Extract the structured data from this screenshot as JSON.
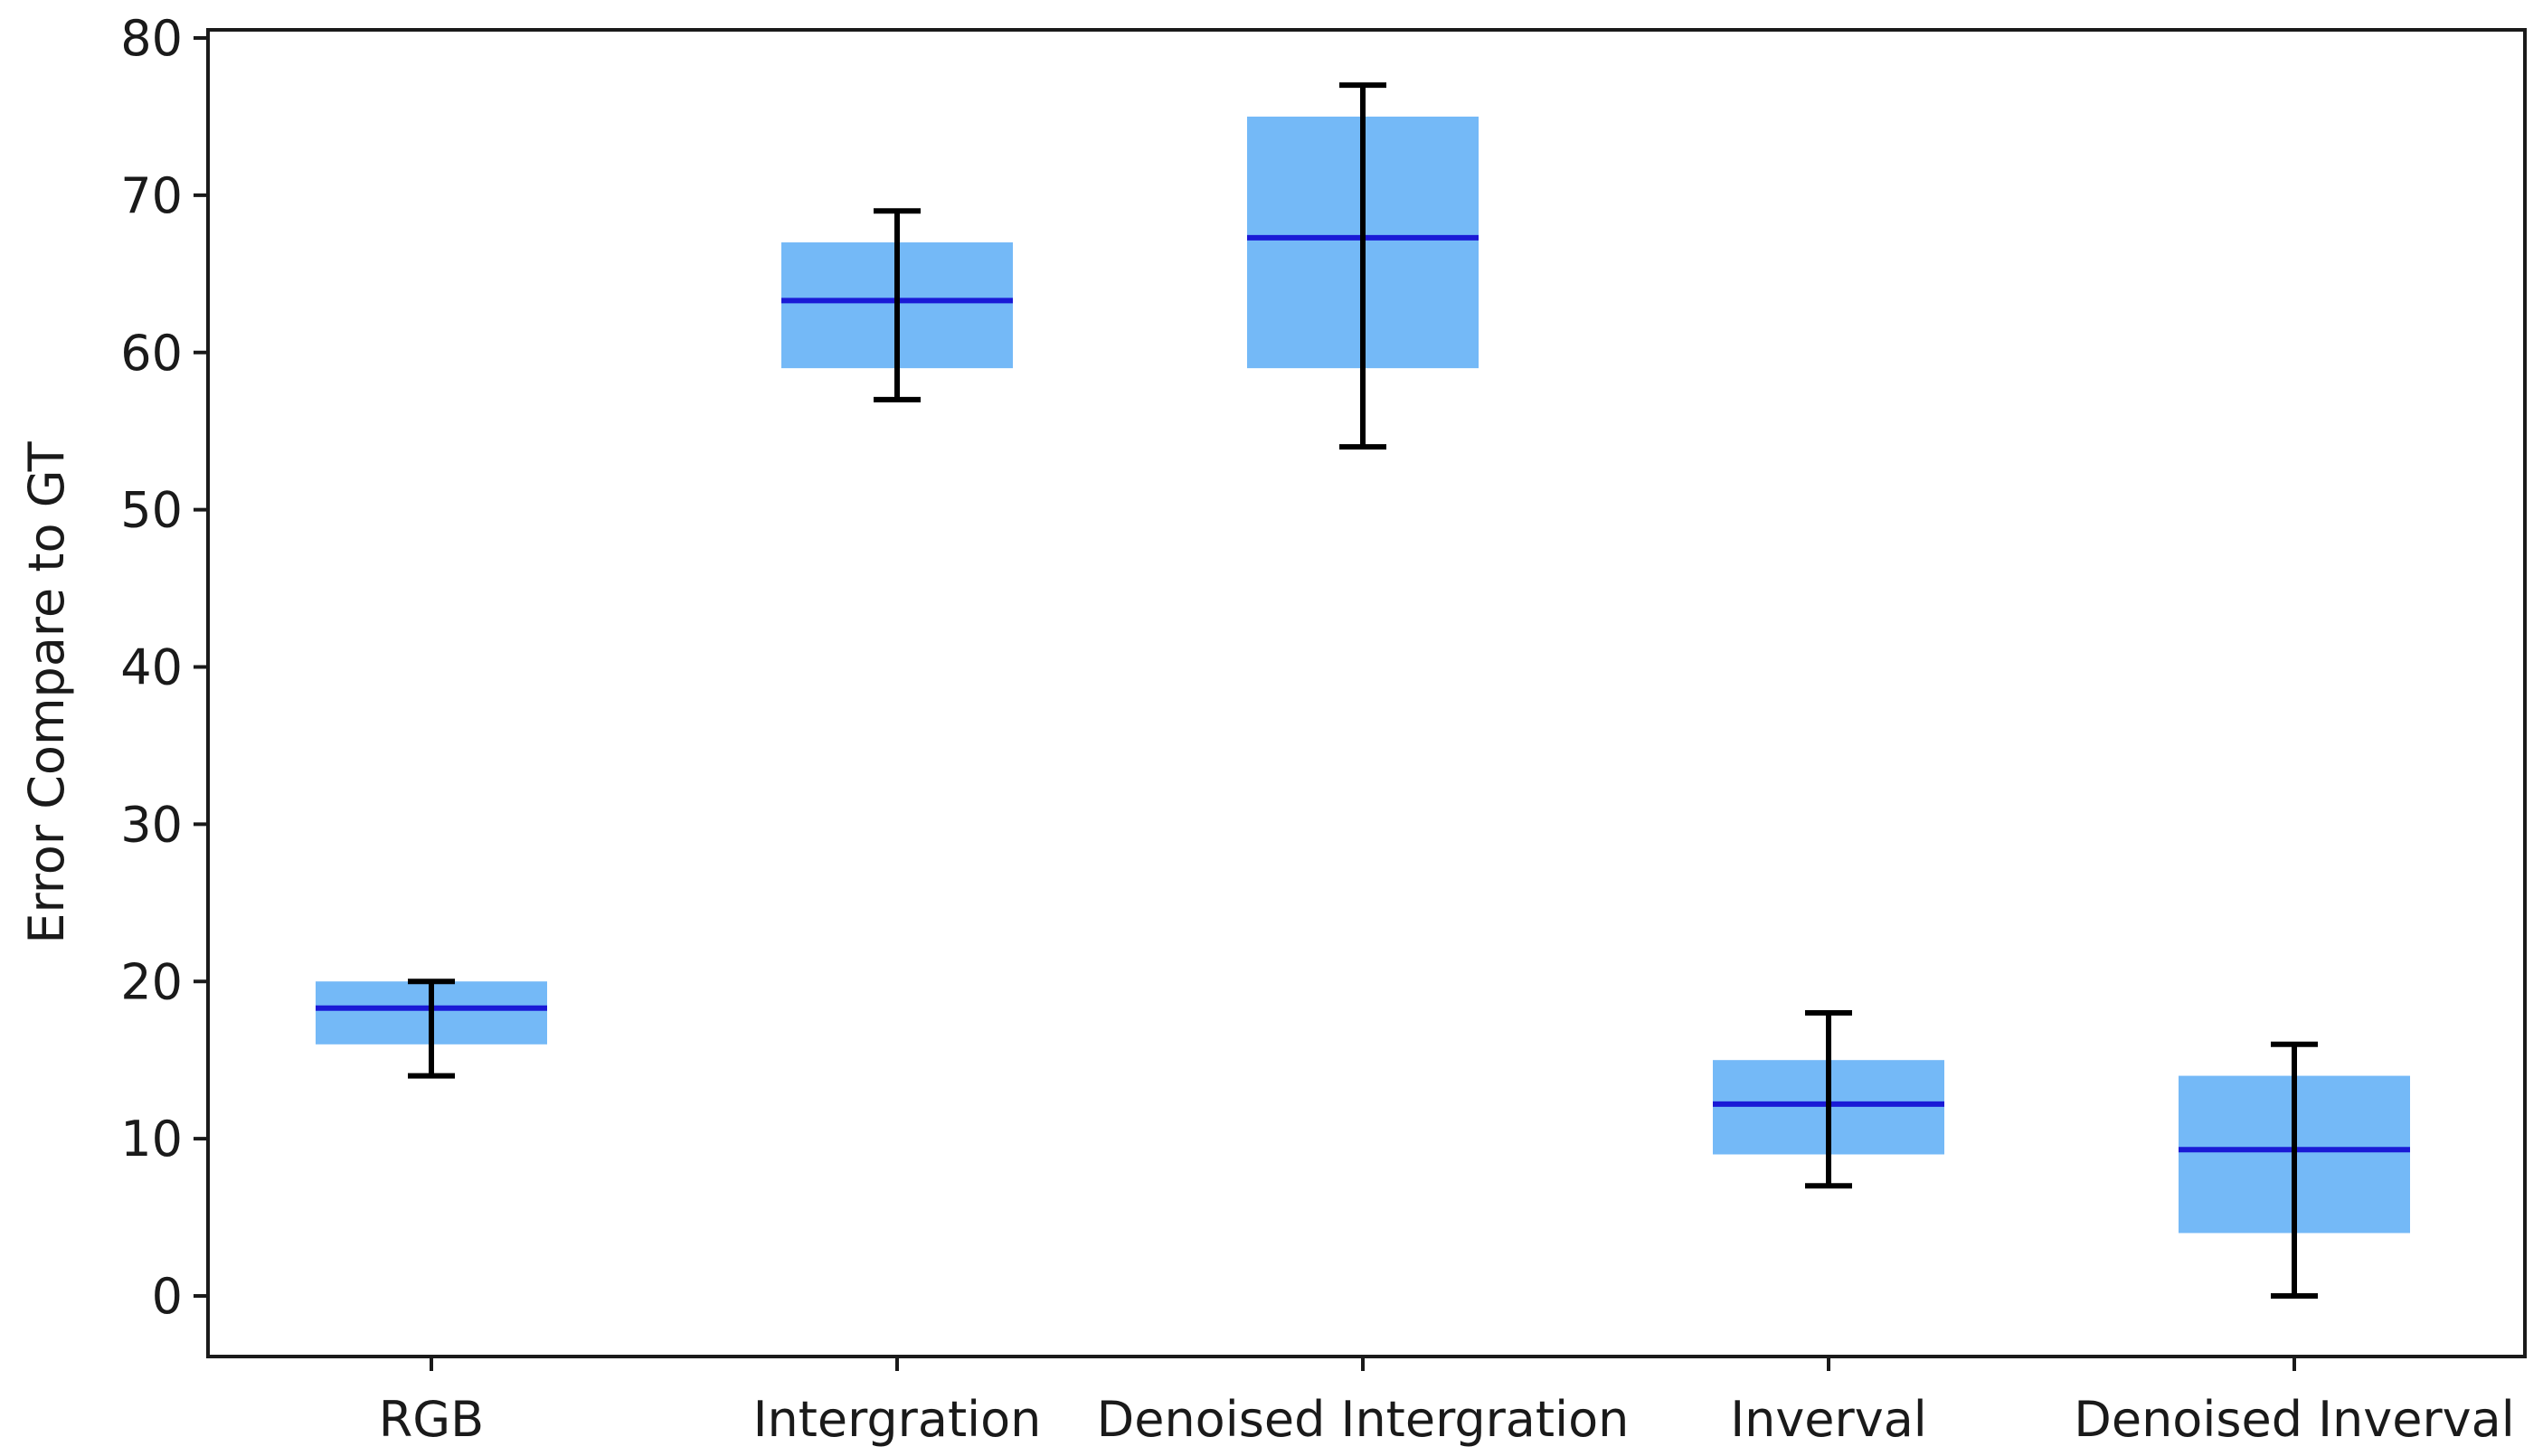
{
  "chart_data": {
    "type": "boxplot",
    "title": "",
    "xlabel": "",
    "ylabel": "Error Compare to GT",
    "ylim": [
      0,
      80
    ],
    "yticks": [
      0,
      10,
      20,
      30,
      40,
      50,
      60,
      70,
      80
    ],
    "categories": [
      "RGB",
      "Intergration",
      "Denoised Intergration",
      "Inverval",
      "Denoised Inverval"
    ],
    "boxes": [
      {
        "label": "RGB",
        "q1": 16,
        "median": 18.3,
        "q3": 20,
        "whisker_low": 14,
        "whisker_high": 20
      },
      {
        "label": "Intergration",
        "q1": 59,
        "median": 63.3,
        "q3": 67,
        "whisker_low": 57,
        "whisker_high": 69
      },
      {
        "label": "Denoised Intergration",
        "q1": 59,
        "median": 67.3,
        "q3": 75,
        "whisker_low": 54,
        "whisker_high": 77
      },
      {
        "label": "Inverval",
        "q1": 9,
        "median": 12.2,
        "q3": 15,
        "whisker_low": 7,
        "whisker_high": 18
      },
      {
        "label": "Denoised Inverval",
        "q1": 4,
        "median": 9.3,
        "q3": 14,
        "whisker_low": 0,
        "whisker_high": 16
      }
    ],
    "colors": {
      "box_fill": "#74b9f7",
      "median": "#1a1ad6",
      "whisker": "#000000",
      "axis": "#1a1a1a"
    },
    "grid": false
  }
}
